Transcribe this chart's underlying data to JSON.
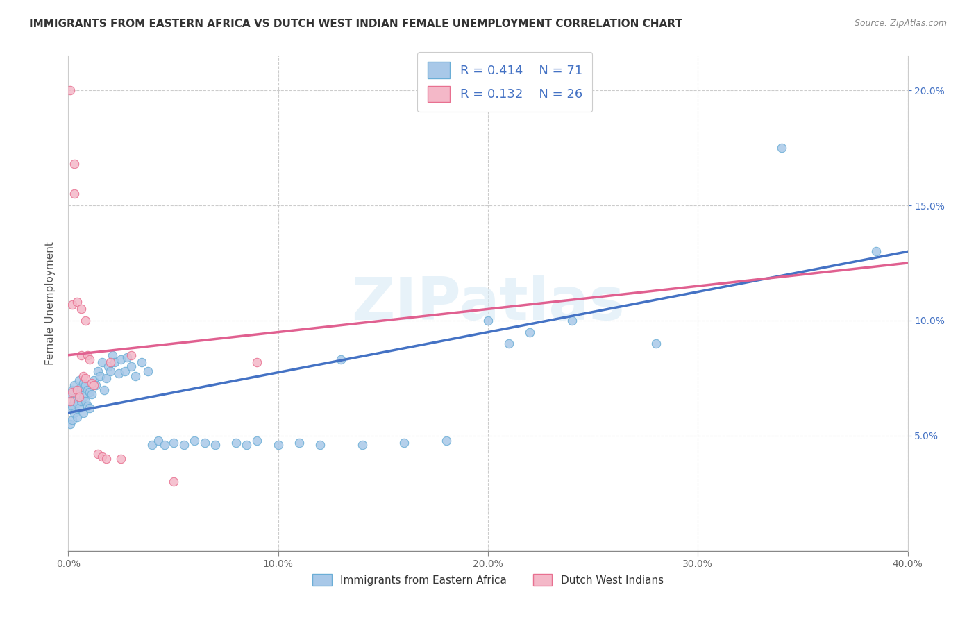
{
  "title": "IMMIGRANTS FROM EASTERN AFRICA VS DUTCH WEST INDIAN FEMALE UNEMPLOYMENT CORRELATION CHART",
  "source": "Source: ZipAtlas.com",
  "ylabel": "Female Unemployment",
  "x_min": 0.0,
  "x_max": 0.4,
  "y_min": 0.0,
  "y_max": 0.215,
  "x_ticks": [
    0.0,
    0.1,
    0.2,
    0.3,
    0.4
  ],
  "x_tick_labels": [
    "0.0%",
    "10.0%",
    "20.0%",
    "30.0%",
    "40.0%"
  ],
  "y_ticks": [
    0.05,
    0.1,
    0.15,
    0.2
  ],
  "y_tick_labels": [
    "5.0%",
    "10.0%",
    "15.0%",
    "20.0%"
  ],
  "color_blue": "#a8c8e8",
  "color_blue_edge": "#6baed6",
  "color_pink": "#f4b8c8",
  "color_pink_edge": "#e87090",
  "color_blue_line": "#4472c4",
  "color_pink_line": "#e06090",
  "watermark": "ZIPatlas",
  "legend_label1": "Immigrants from Eastern Africa",
  "legend_label2": "Dutch West Indians",
  "legend_color": "#4472c4",
  "blue_line_x0": 0.0,
  "blue_line_x1": 0.4,
  "blue_line_y0": 0.06,
  "blue_line_y1": 0.13,
  "pink_line_x0": 0.0,
  "pink_line_x1": 0.4,
  "pink_line_y0": 0.085,
  "pink_line_y1": 0.125,
  "blue_x": [
    0.001,
    0.001,
    0.001,
    0.002,
    0.002,
    0.002,
    0.003,
    0.003,
    0.003,
    0.004,
    0.004,
    0.004,
    0.005,
    0.005,
    0.005,
    0.006,
    0.006,
    0.007,
    0.007,
    0.007,
    0.008,
    0.008,
    0.009,
    0.009,
    0.01,
    0.01,
    0.011,
    0.012,
    0.013,
    0.014,
    0.015,
    0.016,
    0.017,
    0.018,
    0.019,
    0.02,
    0.021,
    0.022,
    0.024,
    0.025,
    0.027,
    0.028,
    0.03,
    0.032,
    0.035,
    0.038,
    0.04,
    0.043,
    0.046,
    0.05,
    0.055,
    0.06,
    0.065,
    0.07,
    0.08,
    0.085,
    0.09,
    0.1,
    0.11,
    0.12,
    0.13,
    0.14,
    0.16,
    0.18,
    0.2,
    0.21,
    0.22,
    0.24,
    0.28,
    0.34,
    0.385
  ],
  "blue_y": [
    0.055,
    0.062,
    0.068,
    0.057,
    0.063,
    0.07,
    0.06,
    0.065,
    0.072,
    0.058,
    0.064,
    0.07,
    0.062,
    0.068,
    0.074,
    0.065,
    0.071,
    0.06,
    0.067,
    0.073,
    0.065,
    0.072,
    0.063,
    0.07,
    0.062,
    0.069,
    0.068,
    0.074,
    0.072,
    0.078,
    0.076,
    0.082,
    0.07,
    0.075,
    0.08,
    0.078,
    0.085,
    0.082,
    0.077,
    0.083,
    0.078,
    0.084,
    0.08,
    0.076,
    0.082,
    0.078,
    0.046,
    0.048,
    0.046,
    0.047,
    0.046,
    0.048,
    0.047,
    0.046,
    0.047,
    0.046,
    0.048,
    0.046,
    0.047,
    0.046,
    0.083,
    0.046,
    0.047,
    0.048,
    0.1,
    0.09,
    0.095,
    0.1,
    0.09,
    0.175,
    0.13
  ],
  "pink_x": [
    0.001,
    0.001,
    0.002,
    0.002,
    0.003,
    0.003,
    0.004,
    0.004,
    0.005,
    0.006,
    0.006,
    0.007,
    0.008,
    0.008,
    0.009,
    0.01,
    0.011,
    0.012,
    0.014,
    0.016,
    0.018,
    0.02,
    0.025,
    0.03,
    0.05,
    0.09
  ],
  "pink_y": [
    0.2,
    0.065,
    0.107,
    0.069,
    0.168,
    0.155,
    0.108,
    0.07,
    0.067,
    0.105,
    0.085,
    0.076,
    0.1,
    0.075,
    0.085,
    0.083,
    0.073,
    0.072,
    0.042,
    0.041,
    0.04,
    0.082,
    0.04,
    0.085,
    0.03,
    0.082
  ]
}
